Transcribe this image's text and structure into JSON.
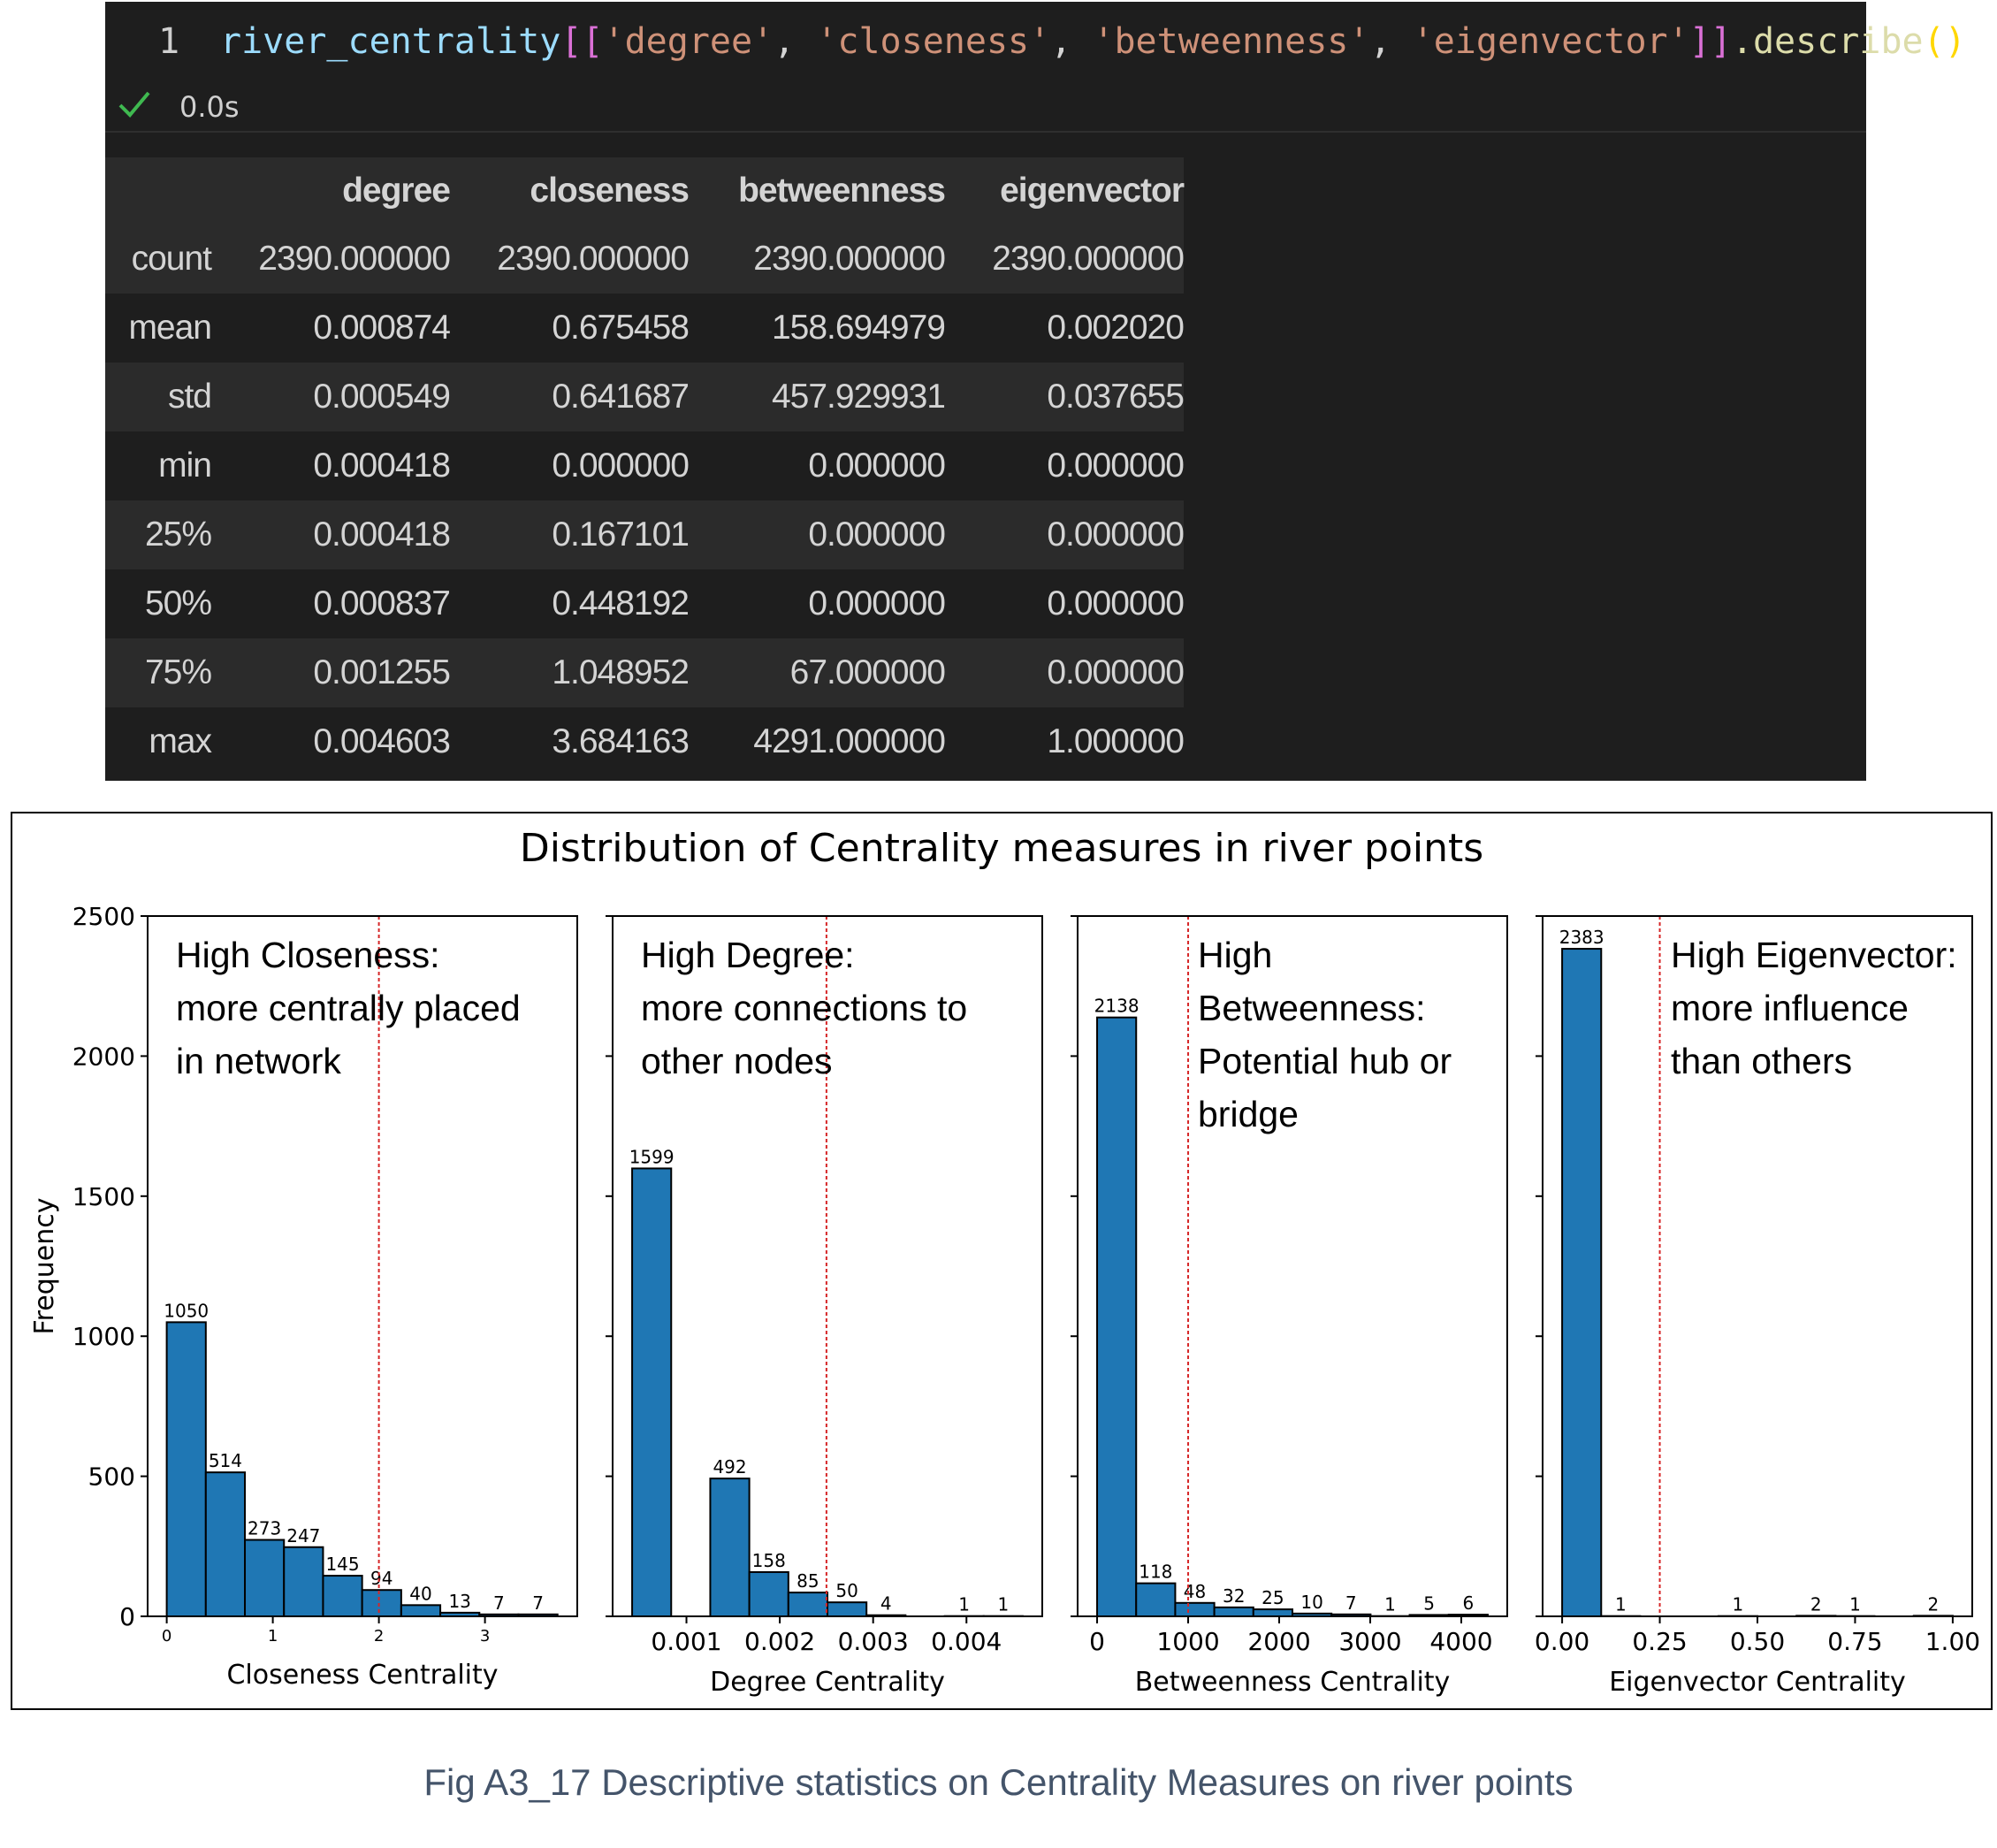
{
  "code": {
    "line_number": "1",
    "tokens": [
      {
        "t": "river_centrality",
        "c": "tok-var"
      },
      {
        "t": "[[",
        "c": "tok-br1"
      },
      {
        "t": "'degree'",
        "c": "tok-str"
      },
      {
        "t": ", ",
        "c": "tok-punc"
      },
      {
        "t": "'closeness'",
        "c": "tok-str"
      },
      {
        "t": ", ",
        "c": "tok-punc"
      },
      {
        "t": "'betweenness'",
        "c": "tok-str"
      },
      {
        "t": ", ",
        "c": "tok-punc"
      },
      {
        "t": "'eigenvector'",
        "c": "tok-str"
      },
      {
        "t": "]]",
        "c": "tok-br1"
      },
      {
        "t": ".describe",
        "c": "tok-fn"
      },
      {
        "t": "()",
        "c": "tok-br2"
      }
    ],
    "exec_time": "0.0s"
  },
  "table": {
    "columns": [
      "",
      "degree",
      "closeness",
      "betweenness",
      "eigenvector"
    ],
    "rows": [
      [
        "count",
        "2390.000000",
        "2390.000000",
        "2390.000000",
        "2390.000000"
      ],
      [
        "mean",
        "0.000874",
        "0.675458",
        "158.694979",
        "0.002020"
      ],
      [
        "std",
        "0.000549",
        "0.641687",
        "457.929931",
        "0.037655"
      ],
      [
        "min",
        "0.000418",
        "0.000000",
        "0.000000",
        "0.000000"
      ],
      [
        "25%",
        "0.000418",
        "0.167101",
        "0.000000",
        "0.000000"
      ],
      [
        "50%",
        "0.000837",
        "0.448192",
        "0.000000",
        "0.000000"
      ],
      [
        "75%",
        "0.001255",
        "1.048952",
        "67.000000",
        "0.000000"
      ],
      [
        "max",
        "0.004603",
        "3.684163",
        "4291.000000",
        "1.000000"
      ]
    ]
  },
  "chart_data": {
    "type": "bar",
    "title": "Distribution of Centrality measures in river points",
    "ylabel": "Frequency",
    "ylim": [
      0,
      2500
    ],
    "yticks": [
      0,
      500,
      1000,
      1500,
      2000,
      2500
    ],
    "bar_color": "#1f77b4",
    "threshold_color": "#d62728",
    "panels": [
      {
        "xlabel": "Closeness Centrality",
        "xlim": [
          -0.18,
          3.87
        ],
        "xticks": [
          0,
          1,
          2,
          3
        ],
        "bin_start": 0.0,
        "bin_width": 0.368416,
        "values": [
          1050,
          514,
          273,
          247,
          145,
          94,
          40,
          13,
          7,
          7
        ],
        "threshold": 2.0,
        "annotation": [
          "High Closeness:",
          "more centrally placed",
          "in network"
        ]
      },
      {
        "xlabel": "Degree Centrality",
        "xlim": [
          0.000209,
          0.004812
        ],
        "xticks": [
          0.001,
          0.002,
          0.003,
          0.004
        ],
        "bin_start": 0.000418,
        "bin_width": 0.0004185,
        "values": [
          1599,
          0,
          492,
          158,
          85,
          50,
          4,
          0,
          1,
          1
        ],
        "threshold": 0.0025,
        "annotation": [
          "High Degree:",
          "more connections to",
          "other nodes"
        ]
      },
      {
        "xlabel": "Betweenness Centrality",
        "xlim": [
          -214,
          4505
        ],
        "xticks": [
          0,
          1000,
          2000,
          3000,
          4000
        ],
        "bin_start": 0,
        "bin_width": 429.1,
        "values": [
          2138,
          118,
          48,
          32,
          25,
          10,
          7,
          1,
          5,
          6
        ],
        "threshold": 1000,
        "annotation": [
          "High",
          "Betweenness:",
          "Potential hub or",
          "bridge"
        ]
      },
      {
        "xlabel": "Eigenvector Centrality",
        "xlim": [
          -0.05,
          1.05
        ],
        "xticks": [
          0.0,
          0.25,
          0.5,
          0.75,
          1.0
        ],
        "xtick_labels": [
          "0.00",
          "0.25",
          "0.50",
          "0.75",
          "1.00"
        ],
        "bin_start": 0,
        "bin_width": 0.1,
        "values": [
          2383,
          1,
          0,
          0,
          1,
          0,
          2,
          1,
          0,
          2
        ],
        "threshold": 0.25,
        "annotation": [
          "High Eigenvector:",
          "more influence",
          "than others"
        ]
      }
    ]
  },
  "caption": "Fig A3_17 Descriptive statistics on Centrality Measures on river points"
}
